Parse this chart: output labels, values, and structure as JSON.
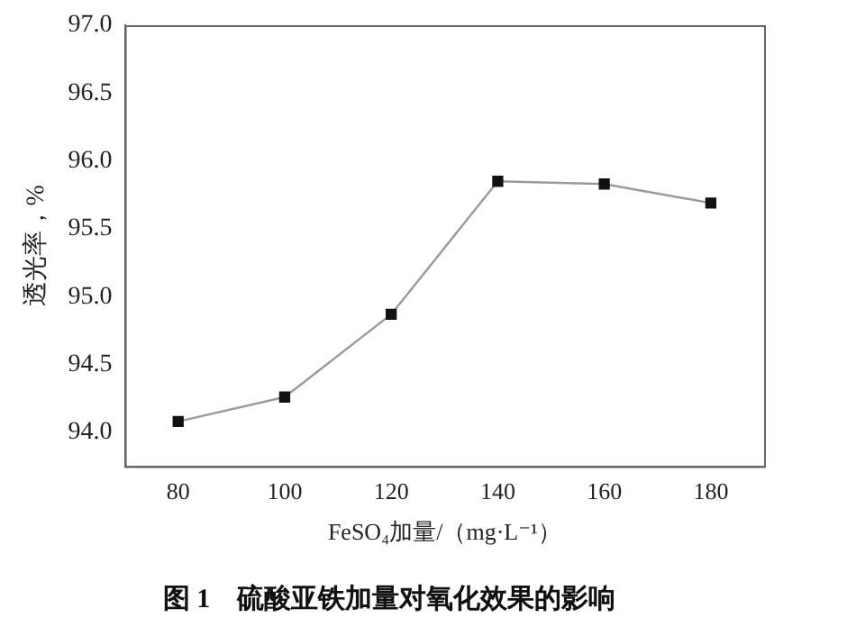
{
  "chart_data": {
    "type": "line",
    "title": "图 1　硫酸亚铁加量对氧化效果的影响",
    "xlabel": "FeSO₄加量/（mg·L⁻¹）",
    "ylabel": "透光率，%",
    "x": [
      80,
      100,
      120,
      140,
      160,
      180
    ],
    "series": [
      {
        "color": "#111111",
        "values": [
          94.08,
          94.26,
          94.87,
          95.85,
          95.83,
          95.69
        ]
      }
    ],
    "xlim": [
      70,
      190
    ],
    "xticks": [
      80,
      100,
      120,
      140,
      160,
      180
    ],
    "ylim": [
      93.75,
      97.0
    ],
    "yticks": [
      {
        "value": 94.0,
        "label": "94.0"
      },
      {
        "value": 94.5,
        "label": "94.5"
      },
      {
        "value": 95.0,
        "label": "95.0"
      },
      {
        "value": 95.5,
        "label": "95.5"
      },
      {
        "value": 96.0,
        "label": "96.0"
      },
      {
        "value": 96.5,
        "label": "96.5"
      },
      {
        "value": 97.0,
        "label": "97.0"
      }
    ],
    "grid": false,
    "legend": false,
    "marker": "square",
    "line_style": "solid"
  }
}
